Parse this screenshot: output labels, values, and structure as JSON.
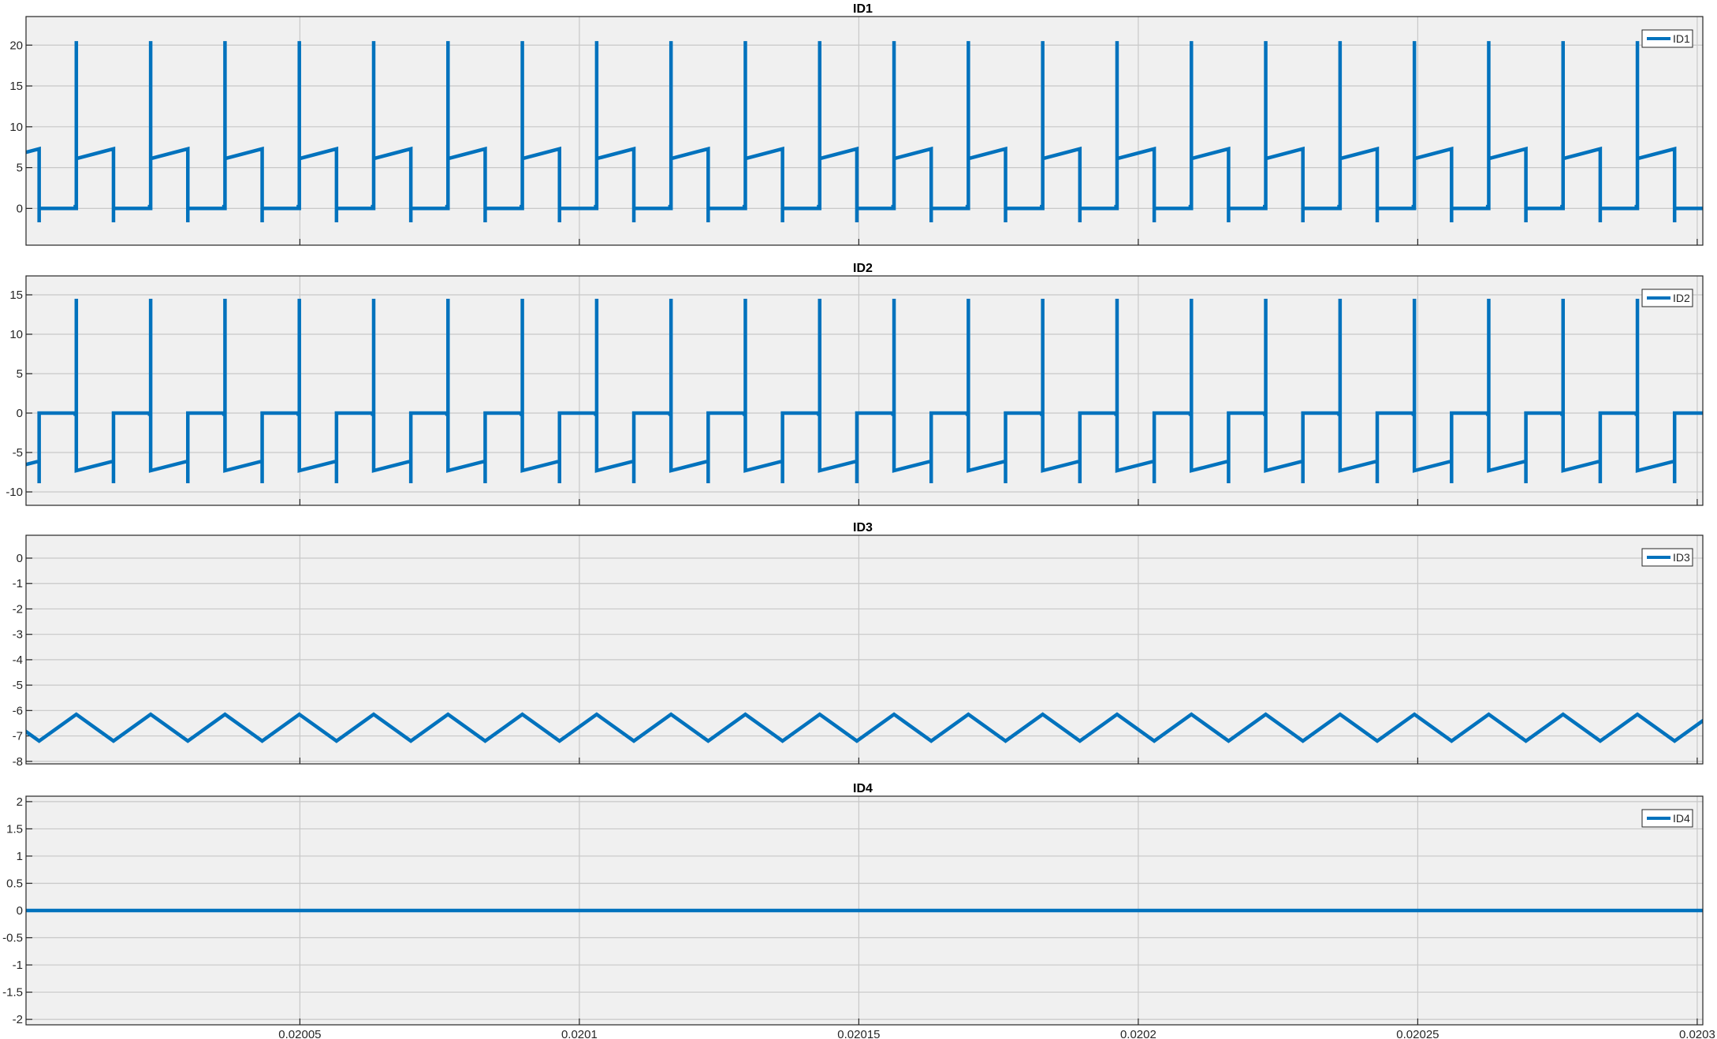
{
  "colors": {
    "trace": "#0072bd",
    "background": "#ffffff",
    "axes_background": "#f0f0f0",
    "grid": "#c8c8c8"
  },
  "chart_data": [
    {
      "type": "line",
      "title": "ID1",
      "legend": {
        "entries": [
          "ID1"
        ],
        "placement": "top-right"
      },
      "grid": true,
      "xlim": [
        0.020001,
        0.020301
      ],
      "ylim": [
        -4.5,
        23.5
      ],
      "yticks": [
        0,
        5,
        10,
        15,
        20
      ],
      "ytick_labels": [
        "0",
        "5",
        "10",
        "15",
        "20"
      ],
      "xtick_labels": [],
      "series": [
        {
          "name": "ID1",
          "waveform": "switching-pulse",
          "period": 1.33e-05,
          "phase": 6.8e-06,
          "base_value": 0,
          "ramp_start": 6.1,
          "ramp_end": 7.3,
          "spike_peak": 20.5,
          "undershoot": -1.7,
          "duty_on": 0.5
        }
      ]
    },
    {
      "type": "line",
      "title": "ID2",
      "legend": {
        "entries": [
          "ID2"
        ],
        "placement": "top-right"
      },
      "grid": true,
      "xlim": [
        0.020001,
        0.020301
      ],
      "ylim": [
        -11.7,
        17.4
      ],
      "yticks": [
        -10,
        -5,
        0,
        5,
        10,
        15
      ],
      "ytick_labels": [
        "-10",
        "-5",
        "0",
        "5",
        "10",
        "15"
      ],
      "xtick_labels": [],
      "series": [
        {
          "name": "ID2",
          "waveform": "switching-pulse",
          "period": 1.33e-05,
          "phase": 6.8e-06,
          "base_value": 0,
          "ramp_start": -7.3,
          "ramp_end": -6.1,
          "spike_peak": 14.5,
          "undershoot": -8.9,
          "duty_on": 0.5
        }
      ]
    },
    {
      "type": "line",
      "title": "ID3",
      "legend": {
        "entries": [
          "ID3"
        ],
        "placement": "top-right"
      },
      "grid": true,
      "xlim": [
        0.020001,
        0.020301
      ],
      "ylim": [
        -8.1,
        0.9
      ],
      "yticks": [
        -8,
        -7,
        -6,
        -5,
        -4,
        -3,
        -2,
        -1,
        0
      ],
      "ytick_labels": [
        "-8",
        "-7",
        "-6",
        "-5",
        "-4",
        "-3",
        "-2",
        "-1",
        "0"
      ],
      "xtick_labels": [],
      "series": [
        {
          "name": "ID3",
          "waveform": "triangle",
          "period": 1.33e-05,
          "phase": 6.8e-06,
          "min_value": -7.2,
          "max_value": -6.15
        }
      ]
    },
    {
      "type": "line",
      "title": "ID4",
      "legend": {
        "entries": [
          "ID4"
        ],
        "placement": "top-right"
      },
      "grid": true,
      "xlim": [
        0.020001,
        0.020301
      ],
      "ylim": [
        -2.1,
        2.1
      ],
      "yticks": [
        -2,
        -1.5,
        -1,
        -0.5,
        0,
        0.5,
        1,
        1.5,
        2
      ],
      "ytick_labels": [
        "-2",
        "-1.5",
        "-1",
        "-0.5",
        "0",
        "0.5",
        "1",
        "1.5",
        "2"
      ],
      "xticks": [
        0.02005,
        0.0201,
        0.02015,
        0.0202,
        0.02025,
        0.0203
      ],
      "xtick_labels": [
        "0.02005",
        "0.0201",
        "0.02015",
        "0.0202",
        "0.02025",
        "0.0203"
      ],
      "series": [
        {
          "name": "ID4",
          "waveform": "constant",
          "value": 0
        }
      ]
    }
  ]
}
